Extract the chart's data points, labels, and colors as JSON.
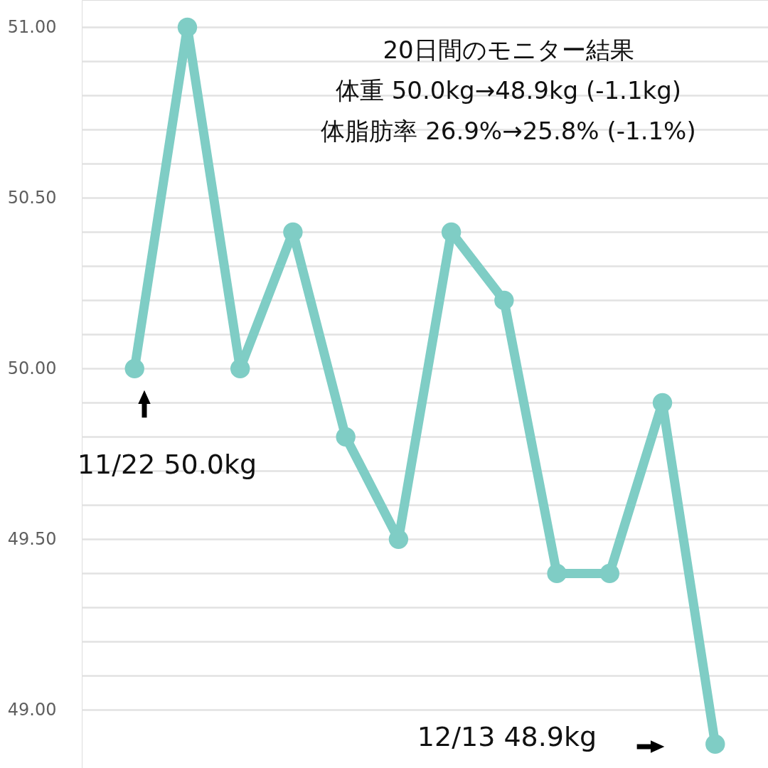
{
  "chart_data": {
    "type": "line",
    "categories": [
      null,
      null,
      null,
      null,
      null,
      null,
      null,
      null,
      null,
      null,
      null,
      null
    ],
    "series": [
      {
        "color": "#7fcdc5",
        "values": [
          50.0,
          51.0,
          50.0,
          50.4,
          49.8,
          49.5,
          50.4,
          50.2,
          49.4,
          49.4,
          49.9,
          48.9
        ]
      }
    ],
    "ylim": [
      48.83,
      51.08
    ],
    "yticks": [
      {
        "value": 49,
        "label": "49.00"
      },
      {
        "value": 49.1,
        "label": null
      },
      {
        "value": 49.2,
        "label": null
      },
      {
        "value": 49.3,
        "label": null
      },
      {
        "value": 49.4,
        "label": null
      },
      {
        "value": 49.5,
        "label": "49.50"
      },
      {
        "value": 49.6,
        "label": null
      },
      {
        "value": 49.7,
        "label": null
      },
      {
        "value": 49.8,
        "label": null
      },
      {
        "value": 49.9,
        "label": null
      },
      {
        "value": 50,
        "label": "50.00"
      },
      {
        "value": 50.1,
        "label": null
      },
      {
        "value": 50.2,
        "label": null
      },
      {
        "value": 50.3,
        "label": null
      },
      {
        "value": 50.4,
        "label": null
      },
      {
        "value": 50.5,
        "label": "50.50"
      },
      {
        "value": 50.6,
        "label": null
      },
      {
        "value": 50.7,
        "label": null
      },
      {
        "value": 50.8,
        "label": null
      },
      {
        "value": 50.9,
        "label": null
      },
      {
        "value": 51,
        "label": "51.00"
      }
    ],
    "grid": "y",
    "marker": "circle",
    "line_style": "solid",
    "annotations": [
      "20日間のモニター結果",
      "体重 50.0kg→48.9kg (-1.1kg)",
      "体脂肪率 26.9%→25.8% (-1.1%)",
      "11/22 50.0kg",
      "12/13 48.9kg"
    ]
  }
}
